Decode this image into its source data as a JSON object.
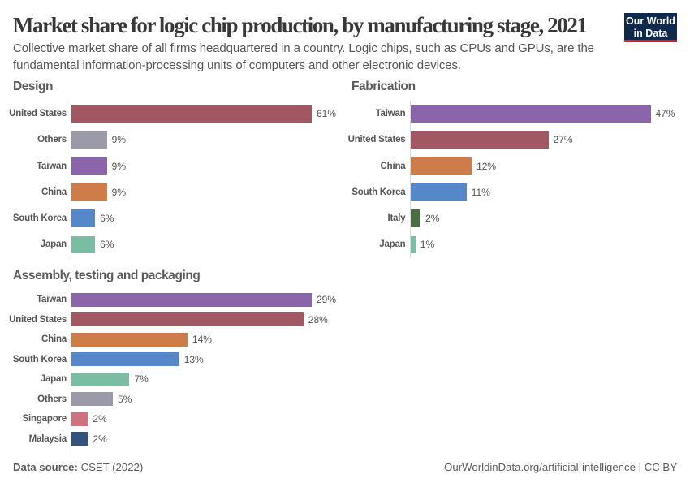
{
  "header": {
    "title": "Market share for logic chip production, by manufacturing stage, 2021",
    "subtitle_lines": [
      "Collective market share of all firms headquartered in a country. Logic chips, such as CPUs and GPUs, are the",
      "fundamental information-processing units of computers and other electronic devices."
    ],
    "logo": {
      "line1": "Our World",
      "line2": "in Data",
      "background_color": "#102a4e",
      "accent_color": "#d8232a"
    }
  },
  "footer": {
    "source_label": "Data source:",
    "source_value": "CSET (2022)",
    "right_text": "OurWorldinData.org/artificial-intelligence | CC BY"
  },
  "entity_colors": {
    "United States": "#a25862",
    "Others": "#9a9aa9",
    "Taiwan": "#8b65a9",
    "China": "#ce7c48",
    "South Korea": "#5488c8",
    "Japan": "#79bda2",
    "Italy": "#486e41",
    "Singapore": "#cd7380",
    "Malaysia": "#32547c"
  },
  "chart_data": [
    {
      "type": "bar",
      "orientation": "horizontal",
      "title": "Design",
      "categories": [
        "United States",
        "Others",
        "Taiwan",
        "China",
        "South Korea",
        "Japan"
      ],
      "values": [
        61,
        9,
        9,
        9,
        6,
        6
      ],
      "value_labels": [
        "61%",
        "9%",
        "9%",
        "9%",
        "6%",
        "6%"
      ],
      "unit": "%",
      "xlim": [
        0,
        61
      ],
      "grid": false,
      "legend": "none"
    },
    {
      "type": "bar",
      "orientation": "horizontal",
      "title": "Fabrication",
      "categories": [
        "Taiwan",
        "United States",
        "China",
        "South Korea",
        "Italy",
        "Japan"
      ],
      "values": [
        47,
        27,
        12,
        11,
        2,
        1
      ],
      "value_labels": [
        "47%",
        "27%",
        "12%",
        "11%",
        "2%",
        "1%"
      ],
      "unit": "%",
      "xlim": [
        0,
        47
      ],
      "grid": false,
      "legend": "none"
    },
    {
      "type": "bar",
      "orientation": "horizontal",
      "title": "Assembly, testing and packaging",
      "categories": [
        "Taiwan",
        "United States",
        "China",
        "South Korea",
        "Japan",
        "Others",
        "Singapore",
        "Malaysia"
      ],
      "values": [
        29,
        28,
        14,
        13,
        7,
        5,
        2,
        2
      ],
      "value_labels": [
        "29%",
        "28%",
        "14%",
        "13%",
        "7%",
        "5%",
        "2%",
        "2%"
      ],
      "unit": "%",
      "xlim": [
        0,
        29
      ],
      "grid": false,
      "legend": "none"
    }
  ]
}
